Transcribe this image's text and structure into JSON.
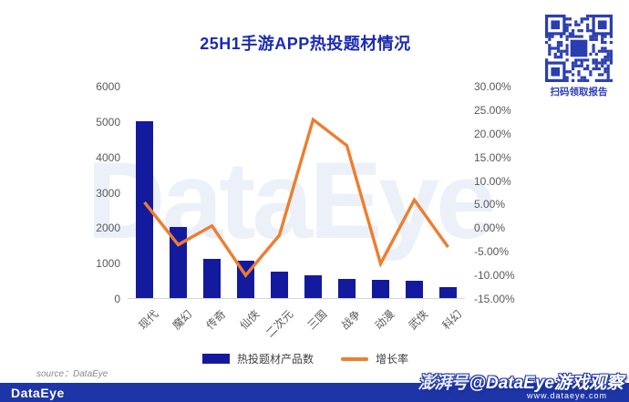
{
  "title": "25H1手游APP热投题材情况",
  "qr": {
    "caption": "扫码领取报告"
  },
  "legend": [
    {
      "label": "热投题材产品数",
      "type": "bar",
      "color": "#131a9e"
    },
    {
      "label": "增长率",
      "type": "line",
      "color": "#ee7d2e"
    }
  ],
  "source_note": "source：DataEye",
  "footer": {
    "logo": "DataEye",
    "website": "www.dataeye.com"
  },
  "watermark": {
    "chart_text": "DataEye",
    "badge_prefix": "澎湃号",
    "badge_text": "@DataEye游戏观察"
  },
  "chart_data": {
    "type": "bar",
    "combo": "bar+line",
    "title": "25H1手游APP热投题材情况",
    "categories": [
      "现代",
      "魔幻",
      "传奇",
      "仙侠",
      "二次元",
      "三国",
      "战争",
      "动漫",
      "武侠",
      "科幻"
    ],
    "series": [
      {
        "name": "热投题材产品数",
        "type": "bar",
        "axis": "left",
        "color": "#131a9e",
        "values": [
          5000,
          2000,
          1100,
          1050,
          750,
          650,
          550,
          520,
          480,
          300
        ]
      },
      {
        "name": "增长率",
        "type": "line",
        "axis": "right",
        "unit": "%",
        "color": "#ee7d2e",
        "values": [
          5.5,
          -3.5,
          0.5,
          -10.0,
          -1.5,
          23.0,
          17.5,
          -7.5,
          6.0,
          -4.0
        ]
      }
    ],
    "left_axis": {
      "min": 0,
      "max": 6000,
      "step": 1000,
      "ticks": [
        "6000",
        "5000",
        "4000",
        "3000",
        "2000",
        "1000",
        "0"
      ]
    },
    "right_axis": {
      "min": -15,
      "max": 30,
      "step": 5,
      "ticks": [
        "30.00%",
        "25.00%",
        "20.00%",
        "15.00%",
        "10.00%",
        "5.00%",
        "0.00%",
        "-5.00%",
        "-10.00%",
        "-15.00%"
      ]
    },
    "grid": false,
    "legend_position": "bottom"
  }
}
